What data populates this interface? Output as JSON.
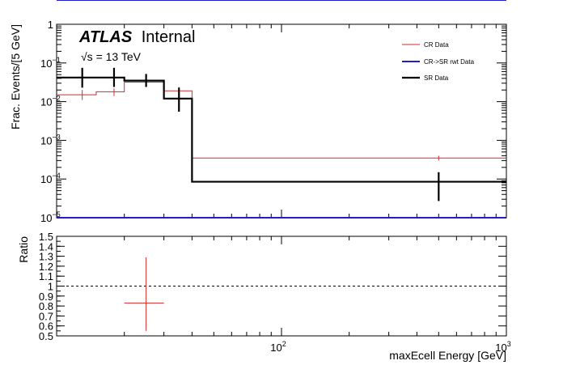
{
  "chart_data": [
    {
      "type": "histogram-step",
      "panel": "main",
      "atlas_label": "ATLAS",
      "atlas_suffix": "Internal",
      "energy_label": "√s = 13 TeV",
      "ylabel": "Frac. Events/[5 GeV]",
      "xlabel": "",
      "xscale": "log",
      "yscale": "log",
      "xlim": [
        10,
        1000
      ],
      "ylim": [
        1e-05,
        1
      ],
      "y_tick_labels": [
        {
          "value": 1,
          "mant": "1",
          "exp": ""
        },
        {
          "value": 0.1,
          "mant": "10",
          "exp": "−1"
        },
        {
          "value": 0.01,
          "mant": "10",
          "exp": "−2"
        },
        {
          "value": 0.001,
          "mant": "10",
          "exp": "−3"
        },
        {
          "value": 0.0001,
          "mant": "10",
          "exp": "−4"
        },
        {
          "value": 1e-05,
          "mant": "10",
          "exp": "−5"
        }
      ],
      "legend_position": "top-right",
      "series": [
        {
          "name": "CR Data",
          "color": "#d42a2a",
          "bins": [
            {
              "low": 10,
              "high": 15,
              "value": 0.015,
              "err_low": 0.011,
              "err_high": 0.02
            },
            {
              "low": 15,
              "high": 20,
              "value": 0.018,
              "err_low": 0.014,
              "err_high": 0.022
            },
            {
              "low": 20,
              "high": 30,
              "value": 0.032,
              "err_low": 0.028,
              "err_high": 0.037
            },
            {
              "low": 30,
              "high": 40,
              "value": 0.019,
              "err_low": 0.012,
              "err_high": 0.024
            },
            {
              "low": 40,
              "high": 1000,
              "value": 0.00035,
              "err_low": 0.0003,
              "err_high": 0.0004
            }
          ],
          "points": [
            {
              "x": 13,
              "y": 0.015,
              "ylo": 0.011,
              "yhi": 0.02
            },
            {
              "x": 18,
              "y": 0.018,
              "ylo": 0.014,
              "yhi": 0.022
            },
            {
              "x": 25,
              "y": 0.032,
              "ylo": 0.028,
              "yhi": 0.037
            },
            {
              "x": 35,
              "y": 0.019,
              "ylo": 0.012,
              "yhi": 0.024
            },
            {
              "x": 500,
              "y": 0.00035,
              "ylo": 0.0003,
              "yhi": 0.0004
            }
          ]
        },
        {
          "name": "CR->SR rwt Data",
          "color": "#1f1fc2",
          "bins": [
            {
              "low": 10,
              "high": 1000,
              "value": 1e-05
            }
          ],
          "points": []
        },
        {
          "name": "SR Data",
          "color": "#000000",
          "bins": [
            {
              "low": 10,
              "high": 15,
              "value": 0.042
            },
            {
              "low": 15,
              "high": 20,
              "value": 0.042
            },
            {
              "low": 20,
              "high": 30,
              "value": 0.035
            },
            {
              "low": 30,
              "high": 40,
              "value": 0.012
            },
            {
              "low": 40,
              "high": 1000,
              "value": 8.5e-05
            }
          ],
          "points": [
            {
              "x": 13,
              "y": 0.042,
              "ylo": 0.023,
              "yhi": 0.075
            },
            {
              "x": 18,
              "y": 0.042,
              "ylo": 0.024,
              "yhi": 0.075
            },
            {
              "x": 25,
              "y": 0.035,
              "ylo": 0.024,
              "yhi": 0.052
            },
            {
              "x": 35,
              "y": 0.012,
              "ylo": 0.0055,
              "yhi": 0.023
            },
            {
              "x": 500,
              "y": 8.5e-05,
              "ylo": 2.7e-05,
              "yhi": 0.00015
            }
          ]
        }
      ]
    },
    {
      "type": "ratio",
      "panel": "ratio",
      "ylabel": "Ratio",
      "xlabel": "maxEcell Energy [GeV]",
      "xscale": "log",
      "xlim": [
        10,
        1000
      ],
      "ylim": [
        0.5,
        1.5
      ],
      "y_tick_labels": [
        "0.5",
        "0.6",
        "0.7",
        "0.8",
        "0.9",
        "1",
        "1.1",
        "1.2",
        "1.3",
        "1.4",
        "1.5"
      ],
      "x_tick_labels": [
        {
          "value": 100,
          "mant": "10",
          "exp": "2"
        },
        {
          "value": 1000,
          "mant": "10",
          "exp": "3"
        }
      ],
      "reference_line": 1.0,
      "series": [
        {
          "name": "CR Data",
          "color": "#d42a2a",
          "points": [
            {
              "x": 25,
              "xlo": 20,
              "xhi": 30,
              "y": 0.83,
              "ylo": 0.55,
              "yhi": 1.29
            }
          ]
        }
      ]
    }
  ]
}
